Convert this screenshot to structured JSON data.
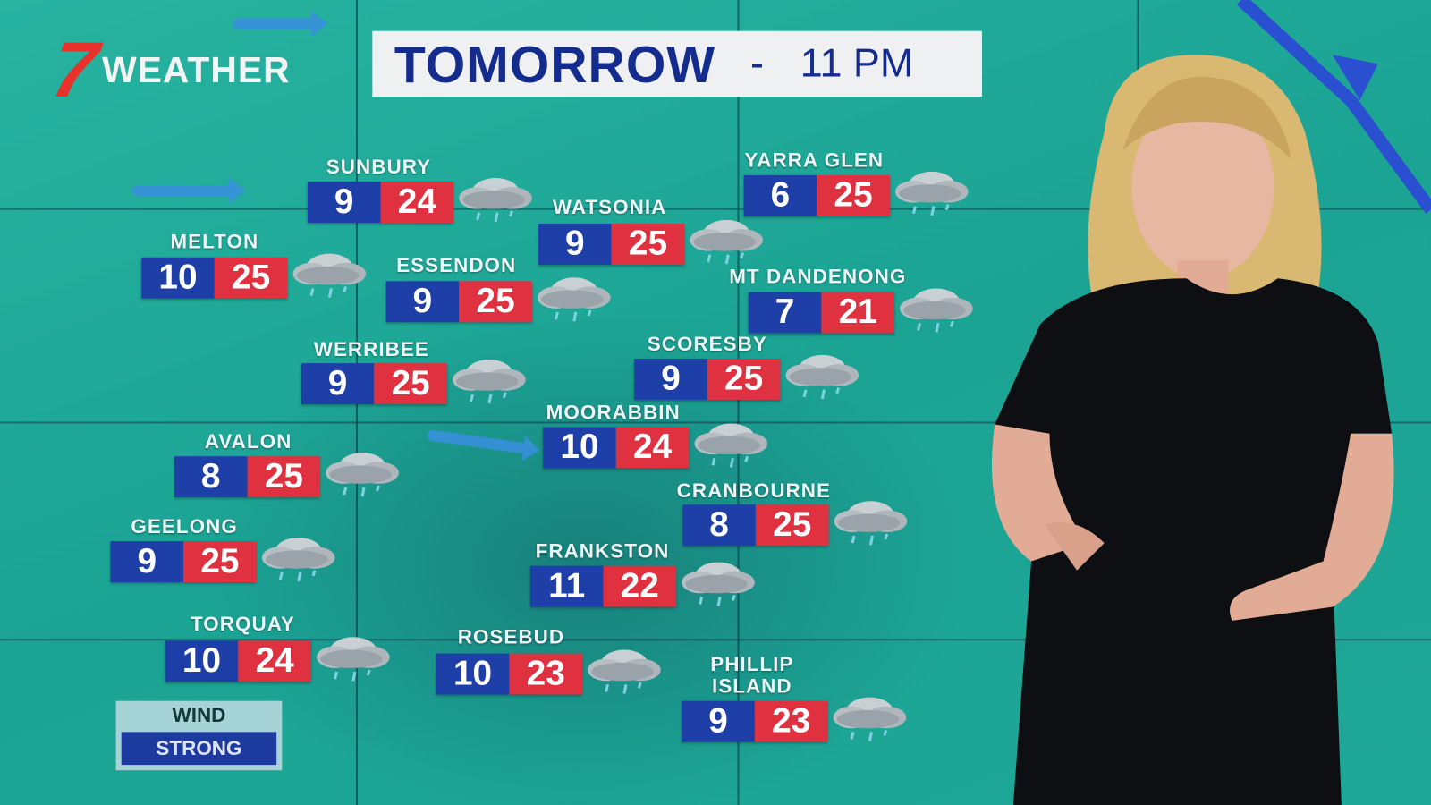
{
  "brand": {
    "logo_number": "7",
    "logo_text": "WEATHER",
    "logo_color": "#e8322b"
  },
  "header": {
    "title": "TOMORROW",
    "separator": "-",
    "time": "11 PM"
  },
  "colors": {
    "min_temp": "#1e3fa8",
    "max_temp": "#df3140",
    "background": "#1ba394"
  },
  "forecast": [
    {
      "name": "SUNBURY",
      "min": "9",
      "max": "24",
      "icon": "rain-cloud-icon"
    },
    {
      "name": "WATSONIA",
      "min": "9",
      "max": "25",
      "icon": "rain-cloud-icon"
    },
    {
      "name": "YARRA GLEN",
      "min": "6",
      "max": "25",
      "icon": "rain-cloud-icon"
    },
    {
      "name": "MELTON",
      "min": "10",
      "max": "25",
      "icon": "rain-cloud-icon"
    },
    {
      "name": "ESSENDON",
      "min": "9",
      "max": "25",
      "icon": "rain-cloud-icon"
    },
    {
      "name": "MT DANDENONG",
      "min": "7",
      "max": "21",
      "icon": "rain-cloud-icon"
    },
    {
      "name": "WERRIBEE",
      "min": "9",
      "max": "25",
      "icon": "rain-cloud-icon"
    },
    {
      "name": "SCORESBY",
      "min": "9",
      "max": "25",
      "icon": "rain-cloud-icon"
    },
    {
      "name": "MOORABBIN",
      "min": "10",
      "max": "24",
      "icon": "rain-cloud-icon"
    },
    {
      "name": "AVALON",
      "min": "8",
      "max": "25",
      "icon": "rain-cloud-icon"
    },
    {
      "name": "CRANBOURNE",
      "min": "8",
      "max": "25",
      "icon": "rain-cloud-icon"
    },
    {
      "name": "GEELONG",
      "min": "9",
      "max": "25",
      "icon": "rain-cloud-icon"
    },
    {
      "name": "FRANKSTON",
      "min": "11",
      "max": "22",
      "icon": "rain-cloud-icon"
    },
    {
      "name": "TORQUAY",
      "min": "10",
      "max": "24",
      "icon": "rain-cloud-icon"
    },
    {
      "name": "ROSEBUD",
      "min": "10",
      "max": "23",
      "icon": "rain-cloud-icon"
    },
    {
      "name": "PHILLIP\nISLAND",
      "min": "9",
      "max": "23",
      "icon": "rain-cloud-icon"
    }
  ],
  "wind": {
    "label": "WIND",
    "value": "STRONG"
  }
}
